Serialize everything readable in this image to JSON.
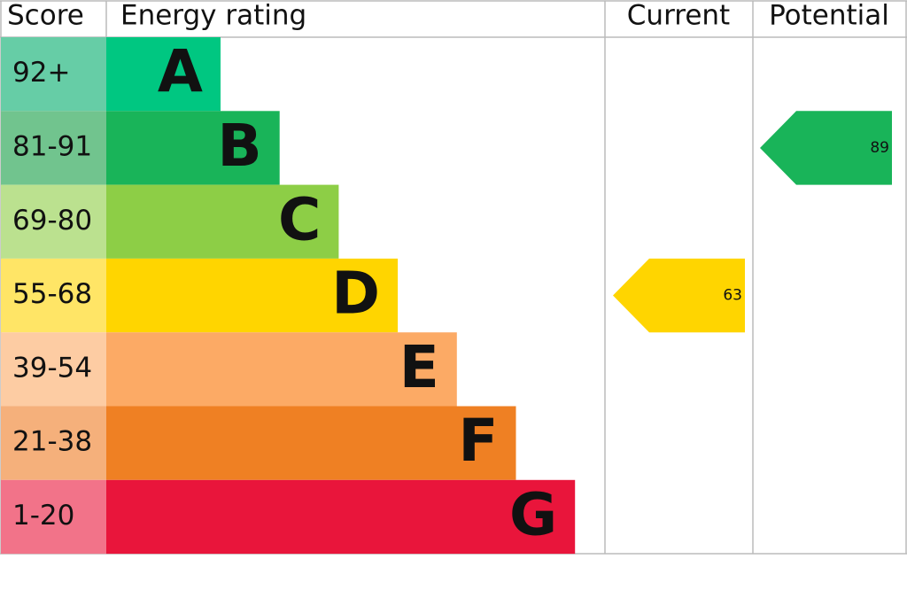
{
  "chart_data": {
    "type": "epc",
    "headers": {
      "score": "Score",
      "rating": "Energy rating",
      "current": "Current",
      "potential": "Potential"
    },
    "bands": [
      {
        "score": "92+",
        "letter": "A",
        "color": "#00c781",
        "score_color": "#66cda6"
      },
      {
        "score": "81-91",
        "letter": "B",
        "color": "#19b459",
        "score_color": "#71c48e"
      },
      {
        "score": "69-80",
        "letter": "C",
        "color": "#8dce46",
        "score_color": "#bbe18f"
      },
      {
        "score": "55-68",
        "letter": "D",
        "color": "#ffd500",
        "score_color": "#ffe566"
      },
      {
        "score": "39-54",
        "letter": "E",
        "color": "#fcaa65",
        "score_color": "#fdcca3"
      },
      {
        "score": "21-38",
        "letter": "F",
        "color": "#ef8023",
        "score_color": "#f5b07b"
      },
      {
        "score": "1-20",
        "letter": "G",
        "color": "#e9153b",
        "score_color": "#f27389"
      }
    ],
    "current": {
      "value": 63,
      "color": "#ffd500"
    },
    "potential": {
      "value": 89,
      "color": "#19b459"
    }
  }
}
